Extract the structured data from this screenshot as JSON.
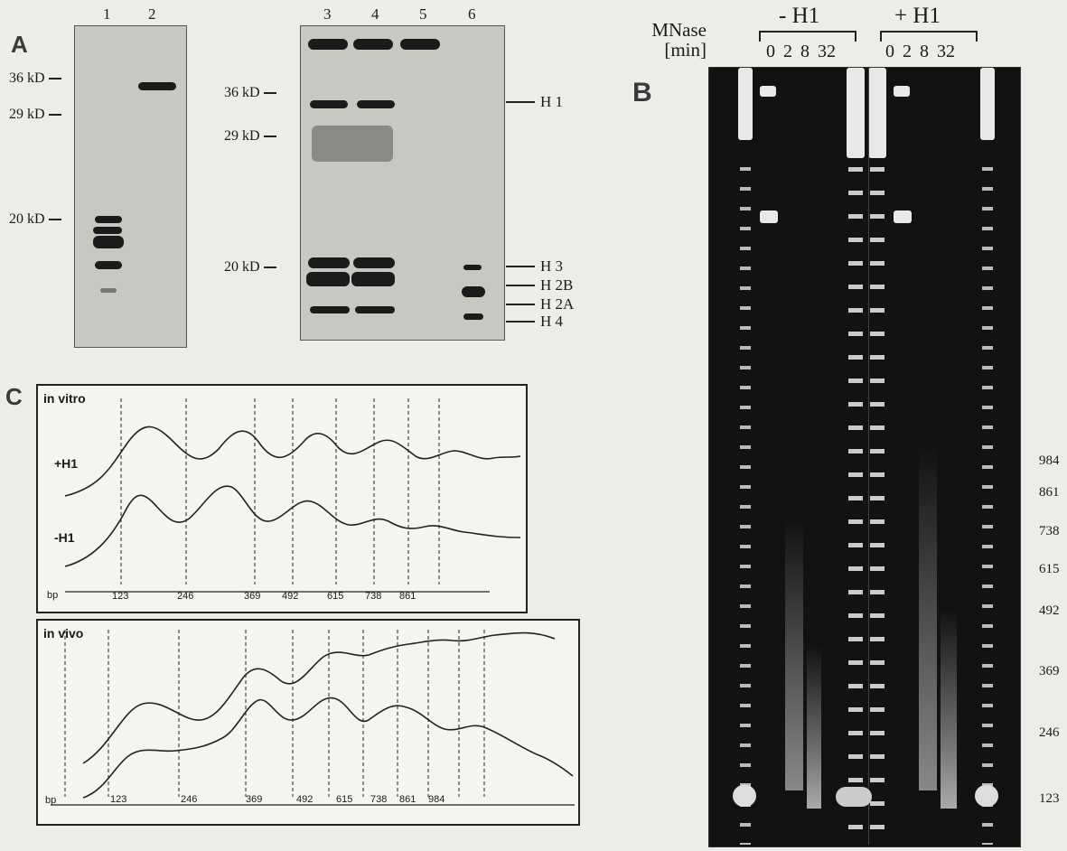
{
  "panel_a": {
    "letter": "A",
    "left_gel": {
      "lanes": [
        "1",
        "2"
      ],
      "markers": [
        "36 kD",
        "29 kD",
        "20 kD"
      ]
    },
    "right_gel": {
      "lanes": [
        "3",
        "4",
        "5",
        "6"
      ],
      "markers": [
        "36 kD",
        "29 kD",
        "20 kD"
      ],
      "histones": [
        "H 1",
        "H 3",
        "H 2B",
        "H 2A",
        "H 4"
      ]
    }
  },
  "panel_b": {
    "letter": "B",
    "mnase_line1": "MNase",
    "mnase_line2": "[min]",
    "groups": [
      {
        "label": "- H1",
        "times": [
          "0",
          "2",
          "8",
          "32"
        ]
      },
      {
        "label": "+ H1",
        "times": [
          "0",
          "2",
          "8",
          "32"
        ]
      }
    ],
    "sizes": [
      "984",
      "861",
      "738",
      "615",
      "492",
      "369",
      "246",
      "123"
    ]
  },
  "panel_c": {
    "letter": "C",
    "in_vitro": {
      "title": "in vitro",
      "traces": [
        "+H1",
        "-H1"
      ],
      "bp_label": "bp",
      "bp_ticks": [
        "123",
        "246",
        "369",
        "492",
        "615",
        "738",
        "861"
      ]
    },
    "in_vivo": {
      "title": "in vivo",
      "bp_label": "bp",
      "bp_ticks": [
        "123",
        "246",
        "369",
        "492",
        "615",
        "738",
        "861",
        "984"
      ]
    }
  }
}
